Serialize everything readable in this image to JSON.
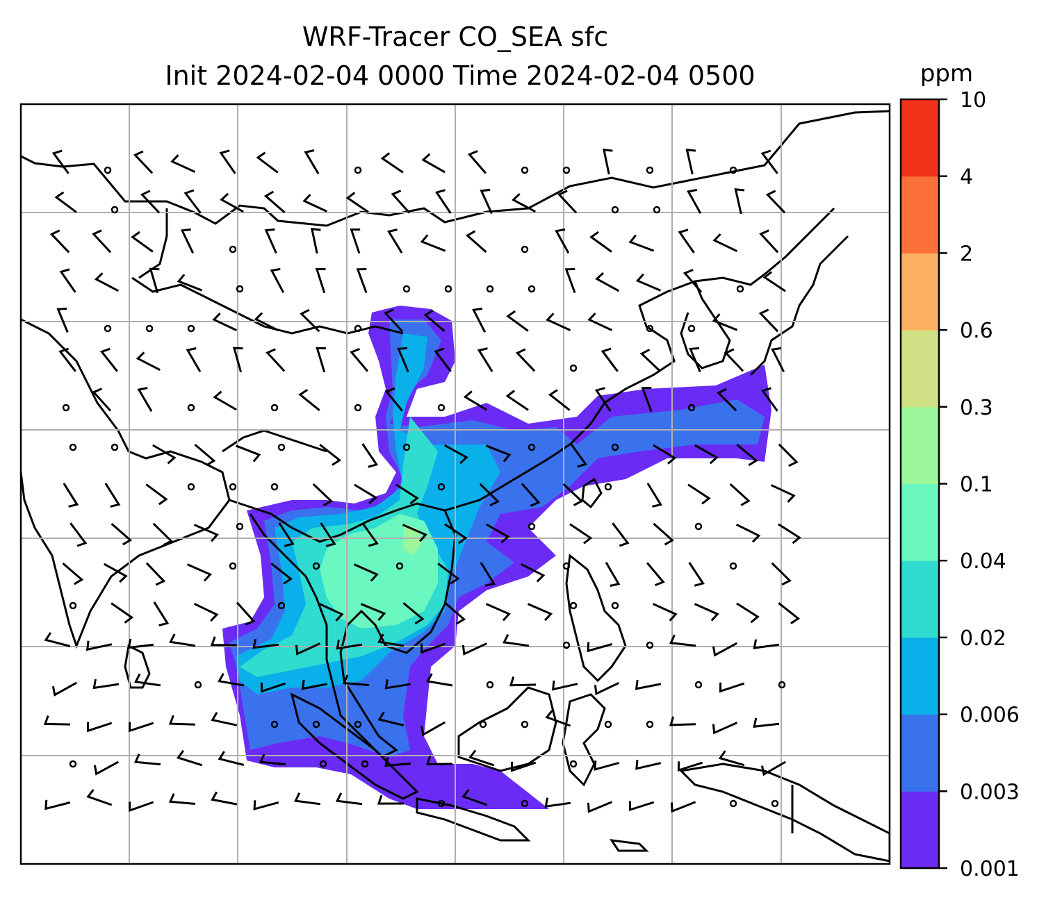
{
  "title": {
    "line1": "WRF-Tracer CO_SEA sfc",
    "line2": "Init 2024-02-04 0000 Time 2024-02-04 0500"
  },
  "colorbar": {
    "unit": "ppm",
    "levels": [
      "0.001",
      "0.003",
      "0.006",
      "0.02",
      "0.04",
      "0.1",
      "0.3",
      "0.6",
      "2",
      "4",
      "10"
    ],
    "colors": [
      "#6a2cf5",
      "#3a72ee",
      "#0ab0ea",
      "#2fdccf",
      "#6af7c0",
      "#9cf79a",
      "#d0e084",
      "#fbb060",
      "#fb7038",
      "#f2321a"
    ]
  },
  "map": {
    "gridlines": true,
    "grid_color": "#b0b0b0",
    "coastline_color": "#000000",
    "features": [
      "coastlines",
      "wind-barbs",
      "calm-circles",
      "tracer-filled-contours"
    ]
  }
}
